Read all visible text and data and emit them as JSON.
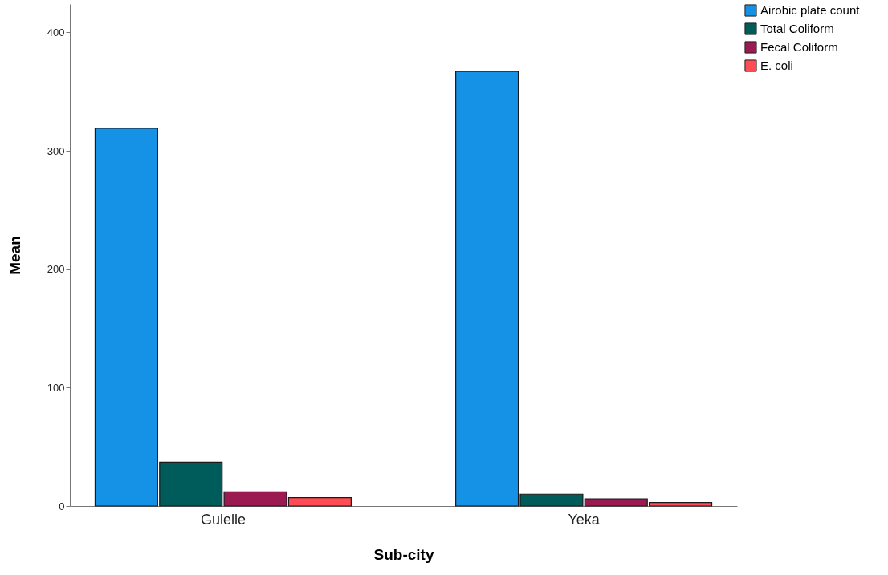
{
  "chart_data": {
    "type": "bar",
    "xlabel": "Sub-city",
    "ylabel": "Mean",
    "categories": [
      "Gulelle",
      "Yeka"
    ],
    "series": [
      {
        "name": "Airobic plate count",
        "color": "#1591e6",
        "values": [
          319,
          367
        ]
      },
      {
        "name": "Total Coliform",
        "color": "#005b5b",
        "values": [
          37,
          10
        ]
      },
      {
        "name": "Fecal Coliform",
        "color": "#9c1a52",
        "values": [
          12,
          6
        ]
      },
      {
        "name": "E. coli",
        "color": "#ff4c55",
        "values": [
          7,
          3
        ]
      }
    ],
    "ylim": [
      0,
      424
    ],
    "yticks": [
      0,
      100,
      200,
      300,
      400
    ],
    "grid": false,
    "legend": "top right"
  }
}
